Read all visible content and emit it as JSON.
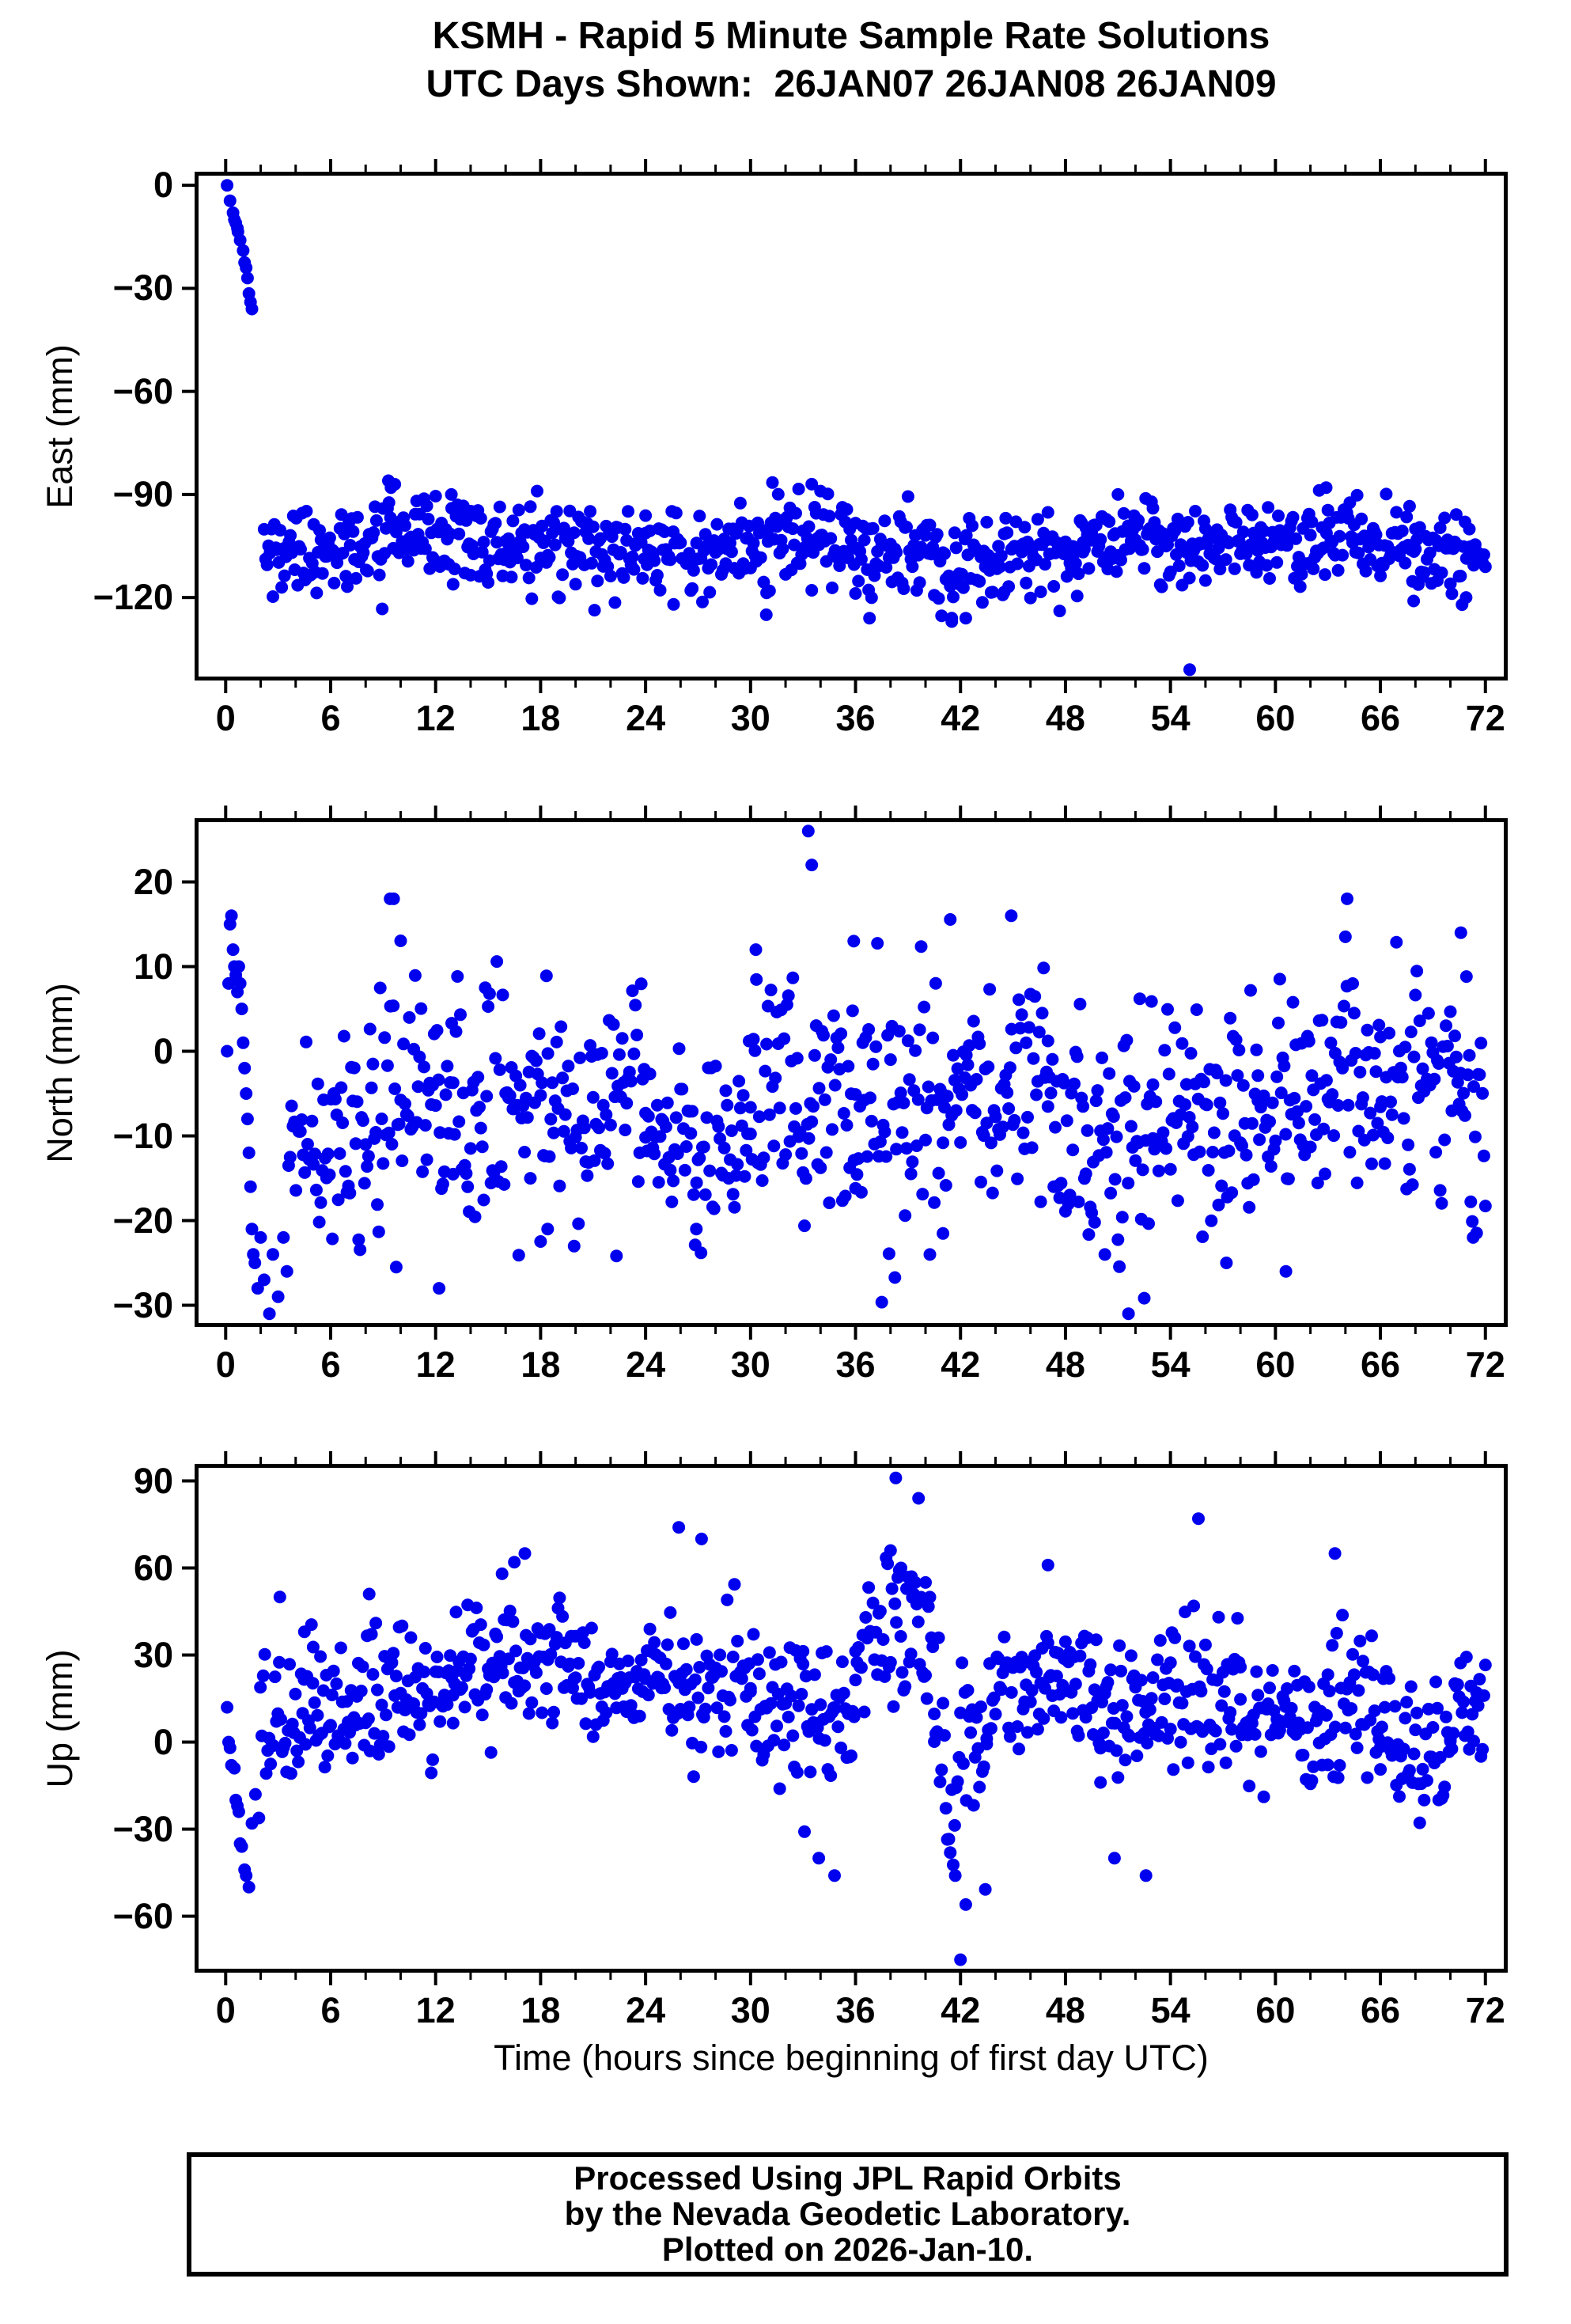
{
  "title": {
    "line1": "KSMH - Rapid 5 Minute Sample Rate Solutions",
    "line2": "UTC Days Shown:  26JAN07 26JAN08 26JAN09"
  },
  "footer": {
    "line1": "Processed Using JPL Rapid Orbits",
    "line2": "by the Nevada Geodetic Laboratory.",
    "line3": "Plotted on 2026-Jan-10."
  },
  "chart_data": {
    "type": "scatter",
    "station": "KSMH",
    "title_line1": "KSMH - Rapid 5 Minute Sample Rate Solutions",
    "title_line2": "UTC Days Shown:  26JAN07 26JAN08 26JAN09",
    "xlabel": "Time (hours since beginning of first day UTC)",
    "xlim": [
      -1.55,
      73.05
    ],
    "x_major_ticks": [
      0,
      6,
      12,
      18,
      24,
      30,
      36,
      42,
      48,
      54,
      60,
      66,
      72
    ],
    "x_minor_ticks": [
      2,
      4,
      8,
      10,
      14,
      16,
      20,
      22,
      26,
      28,
      32,
      34,
      38,
      40,
      44,
      46,
      50,
      52,
      56,
      58,
      62,
      64,
      68,
      70
    ],
    "sample_interval_hours": 0.083333,
    "dot_color": "#0000ee",
    "dot_radius_px": 8,
    "grid": false,
    "legend": null,
    "panels": [
      {
        "id": "east",
        "ylabel": "East (mm)",
        "yticks": [
          0,
          -30,
          -60,
          -90,
          -120
        ],
        "ylim": [
          -143.0,
          2.8
        ],
        "convergence": [
          [
            0.08,
            0
          ],
          [
            0.25,
            -4.5
          ],
          [
            0.42,
            -8
          ],
          [
            0.5,
            -10
          ],
          [
            0.58,
            -11
          ],
          [
            0.67,
            -12.5
          ],
          [
            0.7,
            -13.5
          ],
          [
            0.83,
            -16
          ],
          [
            1.0,
            -19
          ],
          [
            1.08,
            -22.5
          ],
          [
            1.17,
            -24
          ],
          [
            1.25,
            -27
          ],
          [
            1.33,
            -31.5
          ],
          [
            1.42,
            -34
          ],
          [
            1.5,
            -36
          ]
        ],
        "band_segments": [
          {
            "from": 2.2,
            "to": 9,
            "mean": -106,
            "std": 6.5
          },
          {
            "from": 9,
            "to": 14,
            "mean": -103,
            "std": 6
          },
          {
            "from": 14,
            "to": 24,
            "mean": -105.5,
            "std": 6
          },
          {
            "from": 24,
            "to": 31,
            "mean": -106,
            "std": 6.5
          },
          {
            "from": 31,
            "to": 36,
            "mean": -103,
            "std": 7
          },
          {
            "from": 36,
            "to": 40,
            "mean": -107,
            "std": 7
          },
          {
            "from": 40,
            "to": 44.5,
            "mean": -110,
            "std": 7.5
          },
          {
            "from": 44.5,
            "to": 49,
            "mean": -107,
            "std": 6
          },
          {
            "from": 49,
            "to": 56,
            "mean": -104,
            "std": 6
          },
          {
            "from": 56,
            "to": 62,
            "mean": -103.5,
            "std": 6
          },
          {
            "from": 62,
            "to": 68,
            "mean": -104,
            "std": 6
          },
          {
            "from": 68,
            "to": 72,
            "mean": -107,
            "std": 6
          }
        ],
        "clamp": [
          -130,
          -85
        ],
        "outliers": [
          [
            9.3,
            -86
          ],
          [
            9.45,
            -88
          ],
          [
            33.5,
            -87
          ],
          [
            34.0,
            -89
          ],
          [
            55.1,
            -141
          ],
          [
            41.5,
            -127
          ],
          [
            42.3,
            -126
          ],
          [
            30.9,
            -125
          ],
          [
            36.8,
            -126
          ],
          [
            25.6,
            -122
          ],
          [
            12.9,
            -90
          ],
          [
            17.8,
            -89
          ],
          [
            62.9,
            -88
          ],
          [
            51.0,
            -90
          ],
          [
            67.9,
            -121
          ],
          [
            70.9,
            -120
          ]
        ]
      },
      {
        "id": "north",
        "ylabel": "North (mm)",
        "yticks": [
          20,
          10,
          0,
          -10,
          -20,
          -30
        ],
        "ylim": [
          -32.1,
          27.06
        ],
        "convergence": [
          [
            0.08,
            0
          ],
          [
            0.17,
            8
          ],
          [
            0.25,
            15
          ],
          [
            0.33,
            16
          ],
          [
            0.42,
            12
          ],
          [
            0.5,
            10
          ],
          [
            0.58,
            9
          ],
          [
            0.67,
            7
          ],
          [
            0.75,
            10
          ],
          [
            0.83,
            8
          ],
          [
            0.92,
            5
          ],
          [
            1.0,
            1
          ],
          [
            1.08,
            -2
          ],
          [
            1.17,
            -5
          ],
          [
            1.25,
            -8
          ],
          [
            1.33,
            -12
          ],
          [
            1.42,
            -16
          ],
          [
            1.5,
            -21
          ],
          [
            1.58,
            -24
          ],
          [
            1.67,
            -25
          ],
          [
            1.83,
            -28
          ],
          [
            2.0,
            -22
          ],
          [
            2.2,
            -27
          ],
          [
            2.5,
            -31
          ],
          [
            2.7,
            -24
          ],
          [
            3.0,
            -29
          ],
          [
            3.3,
            -22
          ],
          [
            3.5,
            -26
          ]
        ],
        "band_segments": [
          {
            "from": 3.6,
            "to": 8,
            "mean": -11,
            "std": 5.5
          },
          {
            "from": 8,
            "to": 10,
            "mean": -6,
            "std": 8
          },
          {
            "from": 10,
            "to": 13,
            "mean": -5,
            "std": 6
          },
          {
            "from": 13,
            "to": 18,
            "mean": -6,
            "std": 8
          },
          {
            "from": 18,
            "to": 24,
            "mean": -5.5,
            "std": 6.5
          },
          {
            "from": 24,
            "to": 30,
            "mean": -10,
            "std": 6
          },
          {
            "from": 30,
            "to": 36,
            "mean": -6,
            "std": 7.5
          },
          {
            "from": 36,
            "to": 41,
            "mean": -8,
            "std": 9
          },
          {
            "from": 41,
            "to": 47,
            "mean": -4.5,
            "std": 7
          },
          {
            "from": 47,
            "to": 53,
            "mean": -9,
            "std": 8
          },
          {
            "from": 53,
            "to": 59,
            "mean": -8,
            "std": 7
          },
          {
            "from": 59,
            "to": 66,
            "mean": -5,
            "std": 7
          },
          {
            "from": 66,
            "to": 72,
            "mean": -4,
            "std": 7
          }
        ],
        "clamp": [
          -30,
          17
        ],
        "outliers": [
          [
            9.4,
            18
          ],
          [
            9.6,
            18
          ],
          [
            33.3,
            26
          ],
          [
            33.5,
            22
          ],
          [
            35.9,
            13
          ],
          [
            30.3,
            12
          ],
          [
            44.9,
            16
          ],
          [
            64.1,
            18
          ],
          [
            70.6,
            14
          ],
          [
            12.2,
            -28
          ],
          [
            51.6,
            -31
          ],
          [
            57.2,
            -25
          ],
          [
            60.6,
            -26
          ],
          [
            71.3,
            -22
          ],
          [
            18.4,
            -21
          ],
          [
            26.9,
            -21
          ]
        ]
      },
      {
        "id": "up",
        "ylabel": "Up (mm)",
        "yticks": [
          90,
          60,
          30,
          0,
          -30,
          -60
        ],
        "ylim": [
          -78.1,
          94.5
        ],
        "convergence": [
          [
            0.08,
            12
          ],
          [
            0.17,
            0
          ],
          [
            0.25,
            -2
          ],
          [
            0.33,
            -8
          ],
          [
            0.5,
            -9
          ],
          [
            0.58,
            -20
          ],
          [
            0.67,
            -22
          ],
          [
            0.75,
            -24
          ],
          [
            0.83,
            -35
          ],
          [
            0.92,
            -36
          ],
          [
            1.08,
            -44
          ],
          [
            1.17,
            -46
          ],
          [
            1.33,
            -50
          ],
          [
            1.5,
            -28
          ],
          [
            1.7,
            -18
          ]
        ],
        "band_segments": [
          {
            "from": 1.9,
            "to": 5,
            "mean": 8,
            "std": 14
          },
          {
            "from": 5,
            "to": 13,
            "mean": 15,
            "std": 12
          },
          {
            "from": 13,
            "to": 20,
            "mean": 28,
            "std": 12
          },
          {
            "from": 20,
            "to": 26,
            "mean": 22,
            "std": 10
          },
          {
            "from": 26,
            "to": 30,
            "mean": 20,
            "std": 12
          },
          {
            "from": 30,
            "to": 33,
            "mean": 14,
            "std": 12
          },
          {
            "from": 33,
            "to": 36,
            "mean": 3,
            "std": 15
          },
          {
            "from": 36,
            "to": 40.5,
            "mean": 36,
            "std": 18
          },
          {
            "from": 40.5,
            "to": 43.5,
            "mean": -12,
            "std": 20
          },
          {
            "from": 43.5,
            "to": 50,
            "mean": 20,
            "std": 11
          },
          {
            "from": 50,
            "to": 54,
            "mean": 8,
            "std": 14
          },
          {
            "from": 54,
            "to": 58,
            "mean": 18,
            "std": 13
          },
          {
            "from": 58,
            "to": 63,
            "mean": 8,
            "std": 12
          },
          {
            "from": 63,
            "to": 66,
            "mean": 12,
            "std": 15
          },
          {
            "from": 66,
            "to": 70,
            "mean": -4,
            "std": 12
          },
          {
            "from": 70,
            "to": 72,
            "mean": 10,
            "std": 11
          }
        ],
        "clamp": [
          -58,
          85
        ],
        "outliers": [
          [
            38.3,
            91
          ],
          [
            39.6,
            84
          ],
          [
            38.0,
            66
          ],
          [
            38.6,
            60
          ],
          [
            39.2,
            57
          ],
          [
            40.0,
            55
          ],
          [
            27.2,
            70
          ],
          [
            25.9,
            74
          ],
          [
            55.6,
            77
          ],
          [
            17.1,
            65
          ],
          [
            16.5,
            62
          ],
          [
            15.8,
            58
          ],
          [
            63.4,
            65
          ],
          [
            47.0,
            61
          ],
          [
            3.1,
            50
          ],
          [
            4.5,
            38
          ],
          [
            8.2,
            51
          ],
          [
            42.0,
            -75
          ],
          [
            41.7,
            -46
          ],
          [
            42.3,
            -56
          ],
          [
            34.8,
            -46
          ],
          [
            33.9,
            -40
          ],
          [
            52.6,
            -46
          ],
          [
            50.8,
            -40
          ]
        ]
      }
    ]
  }
}
